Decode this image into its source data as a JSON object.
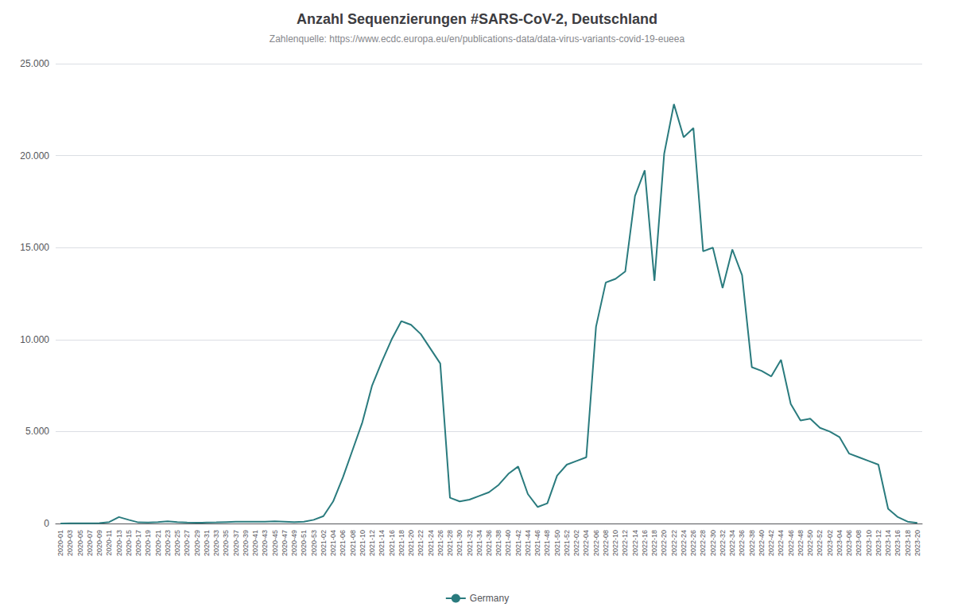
{
  "chart_data": {
    "type": "line",
    "title": "Anzahl Sequenzierungen #SARS-CoV-2, Deutschland",
    "subtitle": "Zahlenquelle: https://www.ecdc.europa.eu/en/publications-data/data-virus-variants-covid-19-eueea",
    "categories": [
      "2020-01",
      "2020-03",
      "2020-05",
      "2020-07",
      "2020-09",
      "2020-11",
      "2020-13",
      "2020-15",
      "2020-17",
      "2020-19",
      "2020-21",
      "2020-23",
      "2020-25",
      "2020-27",
      "2020-29",
      "2020-31",
      "2020-33",
      "2020-35",
      "2020-37",
      "2020-39",
      "2020-41",
      "2020-43",
      "2020-45",
      "2020-47",
      "2020-49",
      "2020-51",
      "2020-53",
      "2021-02",
      "2021-04",
      "2021-06",
      "2021-08",
      "2021-10",
      "2021-12",
      "2021-14",
      "2021-16",
      "2021-18",
      "2021-20",
      "2021-22",
      "2021-24",
      "2021-26",
      "2021-28",
      "2021-30",
      "2021-32",
      "2021-34",
      "2021-36",
      "2021-38",
      "2021-40",
      "2021-42",
      "2021-44",
      "2021-46",
      "2021-48",
      "2021-50",
      "2021-52",
      "2022-02",
      "2022-04",
      "2022-06",
      "2022-08",
      "2022-10",
      "2022-12",
      "2022-14",
      "2022-16",
      "2022-18",
      "2022-20",
      "2022-22",
      "2022-24",
      "2022-26",
      "2022-28",
      "2022-30",
      "2022-32",
      "2022-34",
      "2022-36",
      "2022-38",
      "2022-40",
      "2022-42",
      "2022-44",
      "2022-46",
      "2022-48",
      "2022-50",
      "2022-52",
      "2023-02",
      "2023-04",
      "2023-06",
      "2023-08",
      "2023-10",
      "2023-12",
      "2023-14",
      "2023-16",
      "2023-18",
      "2023-20"
    ],
    "series": [
      {
        "name": "Germany",
        "color": "#2a7b7e",
        "values": [
          5,
          10,
          15,
          10,
          20,
          80,
          350,
          200,
          60,
          50,
          80,
          120,
          80,
          50,
          40,
          50,
          60,
          80,
          100,
          100,
          100,
          100,
          120,
          100,
          80,
          100,
          200,
          400,
          1200,
          2500,
          4000,
          5500,
          7500,
          8800,
          10000,
          11000,
          10800,
          10300,
          9500,
          8700,
          1400,
          1200,
          1300,
          1500,
          1700,
          2100,
          2700,
          3100,
          1600,
          900,
          1100,
          2600,
          3200,
          3400,
          3600,
          10700,
          13100,
          13300,
          13700,
          17800,
          19200,
          13200,
          20100,
          22800,
          21000,
          21500,
          14800,
          15000,
          12800,
          14900,
          13500,
          8500,
          8300,
          8000,
          8900,
          6500,
          5600,
          5700,
          5200,
          5000,
          4700,
          3800,
          3600,
          3400,
          3200,
          800,
          350,
          100,
          30
        ]
      }
    ],
    "ylim": [
      0,
      25000
    ],
    "yticks": [
      0,
      {
        "value": 5000,
        "label": "5.000"
      },
      {
        "value": 10000,
        "label": "10.000"
      },
      {
        "value": 15000,
        "label": "15.000"
      },
      {
        "value": 20000,
        "label": "20.000"
      },
      {
        "value": 25000,
        "label": "25.000"
      }
    ],
    "grid": true,
    "legend": "bottom"
  }
}
